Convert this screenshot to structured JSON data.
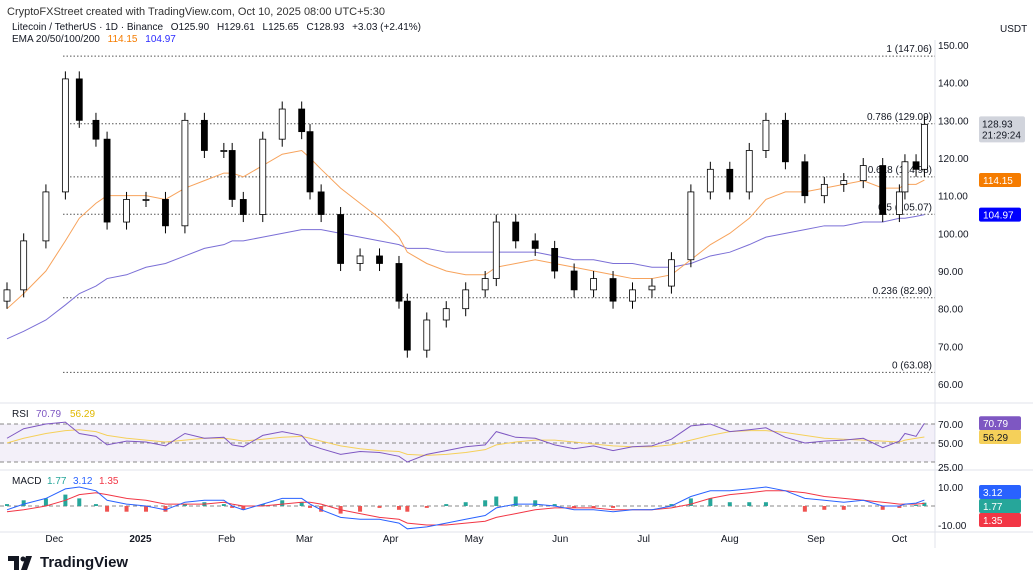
{
  "credit": "CryptoFXStreet created with TradingView.com, Oct 10, 2025 08:00 UTC+5:30",
  "legend": {
    "symbol": "Litecoin / TetherUS · 1D · Binance",
    "open": "O125.90",
    "high": "H129.61",
    "low": "L125.65",
    "close": "C128.93",
    "change": "+3.03 (+2.41%)",
    "ema_label": "EMA 20/50/100/200",
    "ema50": "114.15",
    "ema200": "104.97"
  },
  "logo": "TradingView",
  "colors": {
    "up": "#ffffff",
    "down": "#000000",
    "ema50": "#f7a35c",
    "ema200": "#7b6fd6",
    "rsi": "#7e57c2",
    "rsi_ma": "#f5d05a",
    "macd": "#2962ff",
    "signal": "#f23645",
    "hist_up": "#26a69a",
    "hist_down": "#ef5350",
    "ema50_badge": "#f57c00",
    "ema200_badge": "#0000ff"
  },
  "chart_data": [
    {
      "type": "candlestick",
      "currency": "USDT",
      "ylim": [
        60,
        152
      ],
      "yticks": [
        "150.00",
        "140.00",
        "130.00",
        "120.00",
        "110.00",
        "100.00",
        "90.00",
        "80.00",
        "70.00",
        "60.00"
      ],
      "xticks": [
        "Dec",
        "2025",
        "Feb",
        "Mar",
        "Apr",
        "May",
        "Jun",
        "Jul",
        "Aug",
        "Sep",
        "Oct"
      ],
      "last_price": "128.93",
      "countdown": "21:29:24",
      "fib_levels": [
        {
          "label": "1 (147.06)",
          "value": 147.06
        },
        {
          "label": "0.786 (129.09)",
          "value": 129.09
        },
        {
          "label": "0.618 (114.98)",
          "value": 114.98
        },
        {
          "label": "0.5 (105.07)",
          "value": 105.07
        },
        {
          "label": "0.236 (82.90)",
          "value": 82.9
        },
        {
          "label": "0 (63.08)",
          "value": 63.08
        }
      ],
      "dates": [
        "2024-11-14",
        "2024-11-20",
        "2024-11-28",
        "2024-12-05",
        "2024-12-10",
        "2024-12-16",
        "2024-12-20",
        "2024-12-27",
        "2025-01-03",
        "2025-01-10",
        "2025-01-17",
        "2025-01-24",
        "2025-01-31",
        "2025-02-03",
        "2025-02-07",
        "2025-02-14",
        "2025-02-21",
        "2025-02-28",
        "2025-03-03",
        "2025-03-07",
        "2025-03-14",
        "2025-03-21",
        "2025-03-28",
        "2025-04-04",
        "2025-04-07",
        "2025-04-14",
        "2025-04-21",
        "2025-04-28",
        "2025-05-05",
        "2025-05-09",
        "2025-05-16",
        "2025-05-23",
        "2025-05-30",
        "2025-06-06",
        "2025-06-13",
        "2025-06-20",
        "2025-06-27",
        "2025-07-04",
        "2025-07-11",
        "2025-07-18",
        "2025-07-25",
        "2025-08-01",
        "2025-08-08",
        "2025-08-14",
        "2025-08-21",
        "2025-08-28",
        "2025-09-04",
        "2025-09-11",
        "2025-09-18",
        "2025-09-25",
        "2025-10-01",
        "2025-10-03",
        "2025-10-07",
        "2025-10-10"
      ],
      "close": [
        85,
        98,
        111,
        141,
        130,
        125,
        103,
        109,
        109,
        102,
        130,
        122,
        122,
        109,
        105,
        125,
        133,
        127,
        111,
        105,
        92,
        94,
        92,
        82,
        69,
        77,
        80,
        85,
        88,
        103,
        98,
        96,
        90,
        85,
        88,
        82,
        85,
        86,
        93,
        111,
        117,
        111,
        122,
        130,
        119,
        110,
        113,
        114,
        118,
        105,
        111,
        119,
        117,
        128.93
      ],
      "ema50": [
        80,
        84,
        90,
        98,
        104,
        108,
        110,
        110,
        110,
        109,
        112,
        114,
        116,
        116,
        115,
        118,
        121,
        122,
        120,
        117,
        112,
        108,
        104,
        99,
        95,
        92,
        90,
        89,
        89,
        91,
        92,
        93,
        92,
        91,
        90,
        89,
        88,
        88,
        89,
        93,
        97,
        100,
        104,
        109,
        111,
        111,
        112,
        113,
        114,
        112,
        112,
        113,
        113,
        114.15
      ],
      "ema200": [
        72,
        74,
        77,
        81,
        84,
        86,
        88,
        89,
        91,
        92,
        94,
        96,
        97,
        98,
        98,
        99,
        100,
        101,
        101,
        101,
        100,
        99,
        98,
        97,
        96,
        96,
        95,
        95,
        95,
        95,
        95,
        95,
        94,
        93,
        93,
        92,
        92,
        91,
        91,
        92,
        94,
        95,
        97,
        99,
        100,
        101,
        102,
        102,
        103,
        103,
        104,
        104,
        104.5,
        104.97
      ]
    },
    {
      "type": "line",
      "name": "RSI",
      "ylim": [
        20,
        80
      ],
      "yticks": [
        "70.00",
        "50.00",
        "25.00"
      ],
      "rsi_value": "70.79",
      "rsi_ma_value": "56.29",
      "rsi": [
        55,
        65,
        70,
        72,
        60,
        57,
        48,
        52,
        51,
        47,
        60,
        55,
        56,
        48,
        46,
        58,
        62,
        58,
        48,
        44,
        38,
        41,
        40,
        36,
        30,
        38,
        42,
        46,
        48,
        62,
        56,
        55,
        48,
        44,
        47,
        42,
        46,
        47,
        54,
        68,
        70,
        62,
        64,
        66,
        56,
        50,
        52,
        53,
        55,
        45,
        52,
        60,
        57,
        70.79
      ],
      "rsi_ma": [
        50,
        55,
        60,
        63,
        64,
        62,
        58,
        55,
        53,
        51,
        53,
        55,
        55,
        54,
        52,
        54,
        56,
        57,
        55,
        52,
        47,
        44,
        42,
        41,
        38,
        37,
        38,
        40,
        43,
        48,
        51,
        53,
        53,
        51,
        49,
        47,
        46,
        46,
        48,
        53,
        58,
        62,
        63,
        63,
        61,
        58,
        55,
        54,
        53,
        52,
        51,
        53,
        55,
        56.29
      ]
    },
    {
      "type": "line",
      "name": "MACD",
      "ylim": [
        -12,
        12
      ],
      "yticks": [
        "10.00",
        "-10.00"
      ],
      "hist_value": "1.77",
      "macd_value": "3.12",
      "signal_value": "1.35",
      "macd": [
        -2,
        1,
        4,
        9,
        10,
        8,
        3,
        1,
        0,
        -2,
        2,
        3,
        3,
        0,
        -2,
        1,
        4,
        4,
        1,
        -2,
        -6,
        -7,
        -7,
        -9,
        -12,
        -11,
        -9,
        -7,
        -5,
        -1,
        1,
        1,
        0,
        -2,
        -2,
        -3,
        -2,
        -2,
        0,
        5,
        8,
        8,
        9,
        10,
        8,
        4,
        3,
        2,
        3,
        0,
        0,
        1,
        1.5,
        3.12
      ],
      "signal": [
        -3,
        -2,
        0,
        3,
        6,
        7,
        6,
        4,
        3,
        1,
        1,
        1,
        2,
        1,
        0,
        0,
        1,
        2,
        2,
        1,
        -2,
        -4,
        -6,
        -7,
        -9,
        -10,
        -10,
        -9,
        -8,
        -6,
        -4,
        -2,
        -1,
        -1,
        -1,
        -2,
        -2,
        -2,
        -1,
        1,
        4,
        6,
        7,
        8,
        8,
        7,
        5,
        4,
        3,
        2,
        1,
        1,
        1,
        1.35
      ]
    }
  ]
}
